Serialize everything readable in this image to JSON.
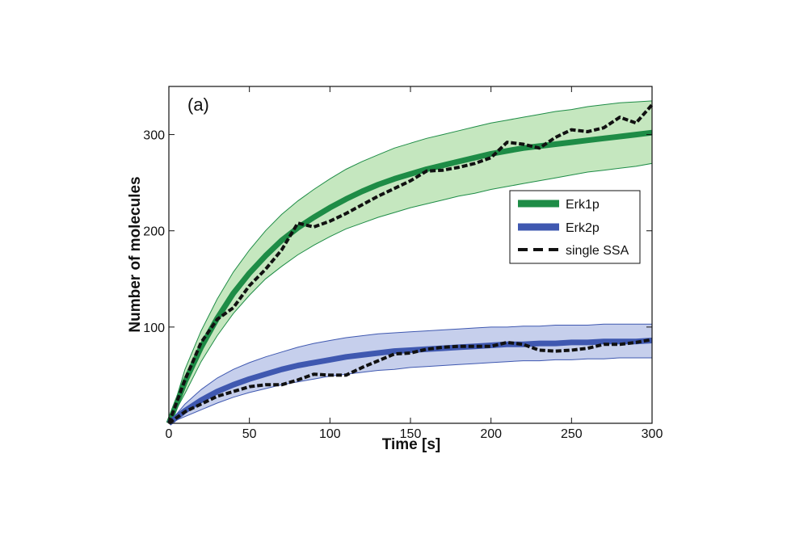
{
  "chart_data": {
    "type": "line",
    "panel_label": "(a)",
    "xlabel": "Time [s]",
    "ylabel": "Number of molecules",
    "xlim": [
      0,
      300
    ],
    "ylim": [
      0,
      350
    ],
    "x_ticks": [
      0,
      50,
      100,
      150,
      200,
      250,
      300
    ],
    "x_tick_labels": [
      "0",
      "50",
      "100",
      "150",
      "200",
      "250",
      "300"
    ],
    "y_ticks": [
      100,
      200,
      300
    ],
    "y_tick_labels": [
      "100",
      "200",
      "300"
    ],
    "grid": false,
    "legend_position": "center-right",
    "legend": [
      {
        "label": "Erk1p",
        "style": "thick-line",
        "color": "#1e8c46"
      },
      {
        "label": "Erk2p",
        "style": "thick-line",
        "color": "#3f58b0"
      },
      {
        "label": "single SSA",
        "style": "dashed",
        "color": "#111111"
      }
    ],
    "x": [
      0,
      10,
      20,
      30,
      40,
      50,
      60,
      70,
      80,
      90,
      100,
      110,
      120,
      130,
      140,
      150,
      160,
      170,
      180,
      190,
      200,
      210,
      220,
      230,
      240,
      250,
      260,
      270,
      280,
      290,
      300
    ],
    "series": [
      {
        "name": "Erk1p",
        "color": "#1e8c46",
        "band_color": "#8ccf7f",
        "mean": [
          0,
          43,
          79,
          109,
          135,
          156,
          174,
          190,
          203,
          214,
          224,
          233,
          241,
          248,
          254,
          259,
          264,
          268,
          272,
          276,
          280,
          283,
          286,
          288,
          290,
          292,
          294,
          296,
          298,
          300,
          302
        ],
        "lower": [
          0,
          31,
          64,
          91,
          114,
          133,
          150,
          163,
          175,
          185,
          194,
          202,
          208,
          214,
          219,
          224,
          228,
          232,
          236,
          239,
          243,
          246,
          249,
          252,
          255,
          258,
          261,
          263,
          265,
          267,
          270
        ],
        "upper": [
          0,
          56,
          96,
          129,
          157,
          180,
          200,
          217,
          231,
          243,
          254,
          264,
          272,
          279,
          286,
          291,
          296,
          300,
          304,
          308,
          312,
          315,
          318,
          321,
          324,
          326,
          329,
          331,
          333,
          334,
          335
        ]
      },
      {
        "name": "Erk2p",
        "color": "#3f58b0",
        "band_color": "#8e9fd9",
        "mean": [
          0,
          13,
          24,
          33,
          40,
          46,
          51,
          56,
          60,
          63,
          66,
          69,
          71,
          73,
          75,
          76,
          77,
          78,
          79,
          80,
          81,
          82,
          82,
          83,
          83,
          84,
          84,
          85,
          85,
          85,
          86
        ],
        "lower": [
          0,
          7,
          14,
          21,
          27,
          32,
          36,
          40,
          43,
          46,
          49,
          51,
          53,
          55,
          56,
          58,
          59,
          60,
          61,
          62,
          63,
          64,
          65,
          65,
          66,
          66,
          67,
          67,
          68,
          68,
          68
        ],
        "upper": [
          0,
          20,
          35,
          47,
          56,
          63,
          69,
          74,
          79,
          83,
          86,
          89,
          91,
          93,
          94,
          95,
          96,
          97,
          98,
          99,
          100,
          100,
          101,
          101,
          102,
          102,
          102,
          103,
          103,
          103,
          103
        ]
      },
      {
        "name": "single SSA (Erk1p)",
        "color": "#111111",
        "values": [
          0,
          45,
          84,
          108,
          120,
          143,
          160,
          180,
          208,
          204,
          210,
          218,
          227,
          236,
          244,
          252,
          262,
          263,
          266,
          270,
          276,
          292,
          290,
          286,
          297,
          305,
          303,
          307,
          318,
          312,
          331
        ]
      },
      {
        "name": "single SSA (Erk2p)",
        "color": "#111111",
        "values": [
          0,
          12,
          20,
          28,
          33,
          38,
          40,
          40,
          45,
          51,
          50,
          50,
          58,
          65,
          72,
          73,
          77,
          79,
          80,
          80,
          80,
          84,
          82,
          76,
          75,
          76,
          78,
          82,
          82,
          84,
          87
        ]
      }
    ]
  }
}
